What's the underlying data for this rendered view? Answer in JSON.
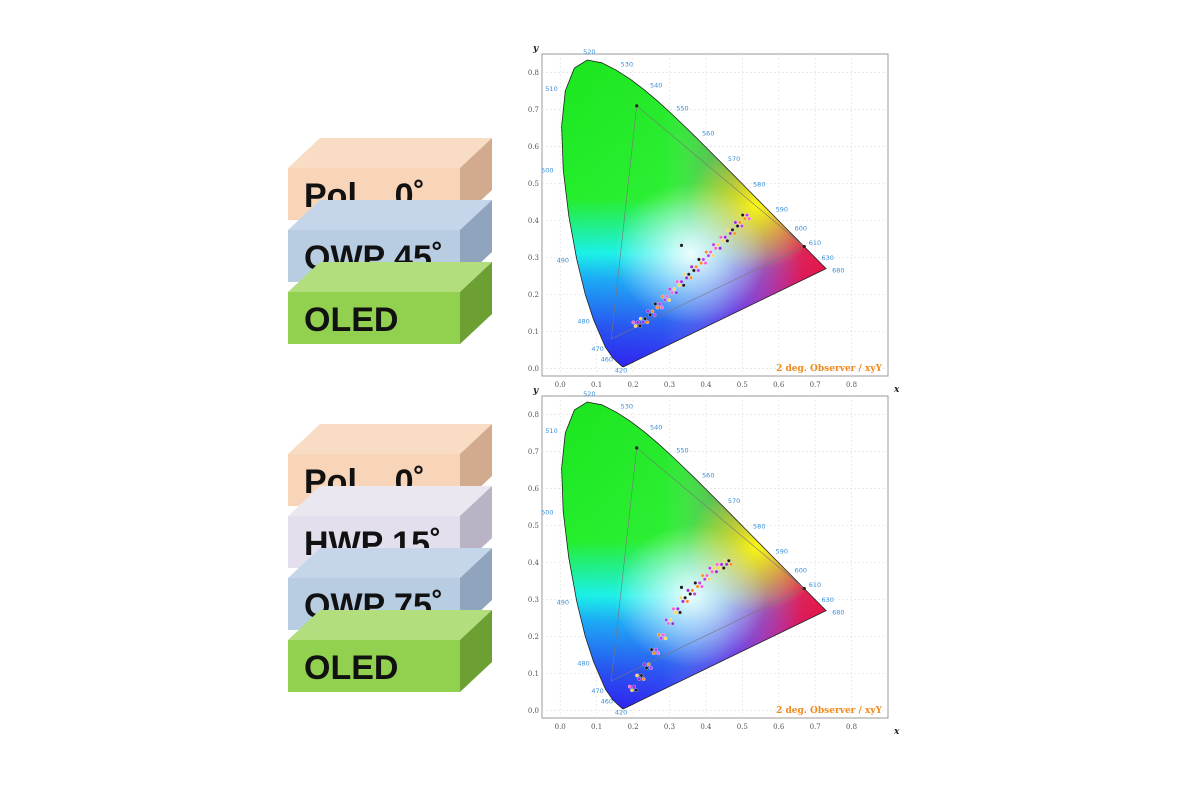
{
  "stacks": [
    {
      "layers": [
        {
          "label": "Pol    0˚",
          "color": "#f8d4b8",
          "top_color": "#f9dcc4",
          "side_color": "#d2ab8f"
        },
        {
          "label": "QWP 45˚",
          "color": "#b8cce2",
          "top_color": "#c6d6ea",
          "side_color": "#90a5bd"
        },
        {
          "label": "OLED",
          "color": "#92d050",
          "top_color": "#b2de7e",
          "side_color": "#6da033"
        }
      ]
    },
    {
      "layers": [
        {
          "label": "Pol    0˚",
          "color": "#f8d4b8",
          "top_color": "#f9dcc4",
          "side_color": "#d2ab8f"
        },
        {
          "label": "HWP 15˚",
          "color": "#e4dfec",
          "top_color": "#ebe7f1",
          "side_color": "#bab3c6"
        },
        {
          "label": "QWP 75˚",
          "color": "#b8cce2",
          "top_color": "#c6d6ea",
          "side_color": "#90a5bd"
        },
        {
          "label": "OLED",
          "color": "#92d050",
          "top_color": "#b2de7e",
          "side_color": "#6da033"
        }
      ]
    }
  ],
  "charts": [
    {
      "x_ticks": [
        "0.0",
        "0.1",
        "0.2",
        "0.3",
        "0.4",
        "0.5",
        "0.6",
        "0.7",
        "0.8"
      ],
      "y_ticks": [
        "0.0",
        "0.1",
        "0.2",
        "0.3",
        "0.4",
        "0.5",
        "0.6",
        "0.7",
        "0.8"
      ],
      "x_label": "x",
      "y_label": "y",
      "observer_label": "2 deg. Observer / xyY",
      "wavelengths": [
        "420",
        "460",
        "470",
        "480",
        "490",
        "500",
        "510",
        "520",
        "530",
        "540",
        "550",
        "560",
        "570",
        "580",
        "590",
        "600",
        "610",
        "630",
        "680"
      ]
    },
    {
      "x_ticks": [
        "0.0",
        "0.1",
        "0.2",
        "0.3",
        "0.4",
        "0.5",
        "0.6",
        "0.7",
        "0.8"
      ],
      "y_ticks": [
        "0.0",
        "0.1",
        "0.2",
        "0.3",
        "0.4",
        "0.5",
        "0.6",
        "0.7",
        "0.8"
      ],
      "x_label": "x",
      "y_label": "y",
      "observer_label": "2 deg. Observer / xyY",
      "wavelengths": [
        "420",
        "460",
        "470",
        "480",
        "490",
        "500",
        "510",
        "520",
        "530",
        "540",
        "550",
        "560",
        "570",
        "580",
        "590",
        "600",
        "610",
        "630",
        "680"
      ]
    }
  ],
  "chart_data": [
    {
      "type": "scatter",
      "xlabel": "x",
      "ylabel": "y",
      "xlim": [
        -0.05,
        0.9
      ],
      "ylim": [
        -0.02,
        0.85
      ],
      "series": [
        {
          "x": [
            0.21,
            0.23,
            0.25,
            0.27,
            0.29,
            0.31,
            0.33,
            0.35,
            0.37,
            0.39,
            0.41,
            0.43,
            0.45,
            0.47,
            0.49,
            0.51
          ],
          "y": [
            0.12,
            0.13,
            0.15,
            0.17,
            0.19,
            0.21,
            0.23,
            0.25,
            0.27,
            0.29,
            0.31,
            0.33,
            0.35,
            0.37,
            0.39,
            0.41
          ]
        }
      ]
    },
    {
      "type": "scatter",
      "xlabel": "x",
      "ylabel": "y",
      "xlim": [
        -0.05,
        0.9
      ],
      "ylim": [
        -0.02,
        0.85
      ],
      "series": [
        {
          "x": [
            0.2,
            0.22,
            0.24,
            0.26,
            0.28,
            0.3,
            0.32,
            0.34,
            0.36,
            0.38,
            0.4,
            0.42,
            0.44,
            0.46
          ],
          "y": [
            0.06,
            0.09,
            0.12,
            0.16,
            0.2,
            0.24,
            0.27,
            0.3,
            0.32,
            0.34,
            0.36,
            0.38,
            0.39,
            0.4
          ]
        }
      ]
    }
  ]
}
